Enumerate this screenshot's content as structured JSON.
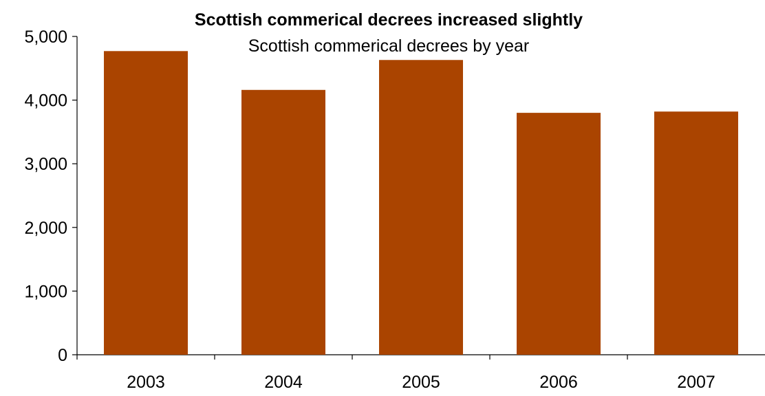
{
  "chart_data": {
    "type": "bar",
    "title": "Scottish commerical decrees increased slightly",
    "subtitle": "Scottish commerical decrees by year",
    "xlabel": "",
    "ylabel": "",
    "categories": [
      "2003",
      "2004",
      "2005",
      "2006",
      "2007"
    ],
    "values": [
      4770,
      4160,
      4630,
      3800,
      3820
    ],
    "ylim": [
      0,
      5000
    ],
    "yticks": [
      0,
      1000,
      2000,
      3000,
      4000,
      5000
    ],
    "ytick_labels": [
      "0",
      "1,000",
      "2,000",
      "3,000",
      "4,000",
      "5,000"
    ],
    "bar_color": "#AA4400",
    "grid": false,
    "legend": "none"
  }
}
